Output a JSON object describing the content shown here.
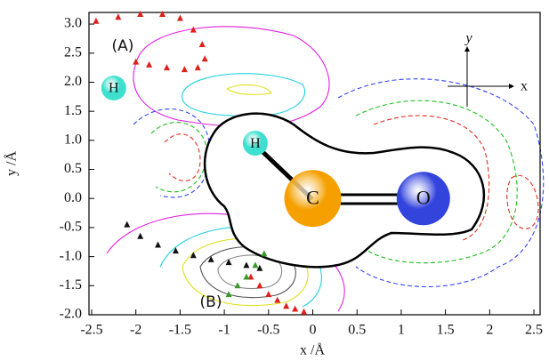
{
  "chart_data": {
    "type": "scatter",
    "xlabel": "x /Å",
    "ylabel": "y /Å",
    "xlim": [
      -2.53,
      2.57
    ],
    "ylim": [
      -2.0,
      3.2
    ],
    "xticks": [
      -2.5,
      -2,
      -1.5,
      -1,
      -0.5,
      0,
      0.5,
      1,
      1.5,
      2,
      2.5
    ],
    "yticks": [
      {
        "value": 3,
        "label": "3.0"
      },
      2.5,
      {
        "value": 2,
        "label": "2.0"
      },
      1.5,
      {
        "value": 1,
        "label": "1.0"
      },
      0.5,
      {
        "value": 0,
        "label": "0.0"
      },
      -0.5,
      {
        "value": -1,
        "label": "-1.0"
      },
      -1.5,
      {
        "value": -2,
        "label": "-2.0"
      }
    ],
    "annotations": [
      "(A)",
      "(B)"
    ],
    "inset_axes": [
      "y",
      "x"
    ],
    "atoms": [
      {
        "label": "H",
        "x": -2.25,
        "y": 1.9,
        "color": "#3de0cf"
      },
      {
        "label": "H",
        "x": -0.65,
        "y": 0.95,
        "color": "#3de0cf"
      },
      {
        "label": "C",
        "x": 0,
        "y": 0,
        "color": "#f5a000"
      },
      {
        "label": "O",
        "x": 1.25,
        "y": 0,
        "color": "#3344dd"
      }
    ],
    "series": [
      {
        "color": "#e0201a",
        "x": [
          -2.45,
          -2.2,
          -1.95,
          -1.7,
          -1.5,
          -1.35,
          -1.25,
          -1.22,
          -1.3,
          -1.45,
          -1.65,
          -1.85,
          -2.0
        ],
        "values": [
          3.05,
          3.12,
          3.17,
          3.17,
          3.1,
          2.9,
          2.65,
          2.4,
          2.25,
          2.22,
          2.25,
          2.3,
          2.35
        ]
      },
      {
        "color": "#111111",
        "x": [
          -2.1,
          -1.95,
          -1.75,
          -1.55,
          -1.35,
          -1.15,
          -0.95,
          -0.75,
          -0.6
        ],
        "values": [
          -0.45,
          -0.65,
          -0.8,
          -0.9,
          -0.98,
          -1.05,
          -1.1,
          -1.15,
          -1.2
        ]
      },
      {
        "color": "#e0201a",
        "x": [
          -0.7,
          -0.6,
          -0.5,
          -0.4,
          -0.3,
          -0.2,
          -0.1
        ],
        "values": [
          -1.35,
          -1.5,
          -1.65,
          -1.75,
          -1.85,
          -1.9,
          -1.95
        ]
      },
      {
        "color": "#3a9a2a",
        "x": [
          -0.95,
          -0.85,
          -0.75,
          -0.65,
          -0.55
        ],
        "values": [
          -1.65,
          -1.5,
          -1.35,
          -1.15,
          -0.95
        ]
      }
    ]
  }
}
